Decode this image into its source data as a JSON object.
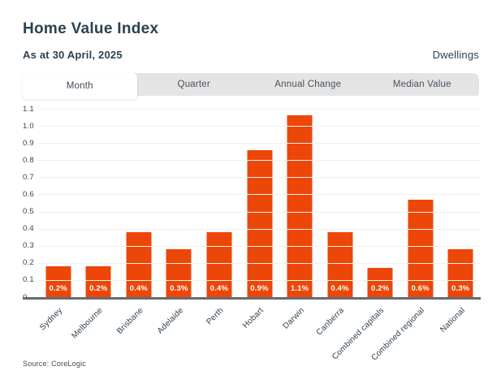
{
  "header": {
    "title": "Home Value Index",
    "subtitle": "As at 30 April, 2025",
    "type_label": "Dwellings"
  },
  "tabs": [
    {
      "label": "Month",
      "active": true
    },
    {
      "label": "Quarter",
      "active": false
    },
    {
      "label": "Annual Change",
      "active": false
    },
    {
      "label": "Median Value",
      "active": false
    }
  ],
  "footer": {
    "source": "Source: CoreLogic"
  },
  "colors": {
    "bar": "#EC4708",
    "heading_text": "#2B4150",
    "tab_bar_bg": "#E4E4E4",
    "active_tab_bg": "#FFFFFF",
    "gridline": "#EFEFEF",
    "axis_line": "#636C74",
    "value_label_text": "#FFFFFF"
  },
  "chart_data": {
    "type": "bar",
    "title": "Home Value Index",
    "subtitle": "As at 30 April, 2025",
    "categories": [
      "Sydney",
      "Melbourne",
      "Brisbane",
      "Adelaide",
      "Perth",
      "Hobart",
      "Darwin",
      "Canberra",
      "Combined capitals",
      "Combined regional",
      "National"
    ],
    "values": [
      0.2,
      0.2,
      0.4,
      0.3,
      0.4,
      0.9,
      1.1,
      0.4,
      0.2,
      0.6,
      0.3
    ],
    "value_labels": [
      "0.2%",
      "0.2%",
      "0.4%",
      "0.3%",
      "0.4%",
      "0.9%",
      "1.1%",
      "0.4%",
      "0.2%",
      "0.6%",
      "0.3%"
    ],
    "bar_heights": [
      0.18,
      0.18,
      0.38,
      0.28,
      0.38,
      0.86,
      1.06,
      0.38,
      0.17,
      0.57,
      0.28
    ],
    "y_ticks": [
      "0",
      "0.1",
      "0.2",
      "0.3",
      "0.4",
      "0.5",
      "0.6",
      "0.7",
      "0.8",
      "0.9",
      "1.0",
      "1.1"
    ],
    "ylim": [
      0,
      1.1
    ],
    "xlabel": "",
    "ylabel": "",
    "grid": true,
    "legend": false,
    "unit": "%"
  }
}
